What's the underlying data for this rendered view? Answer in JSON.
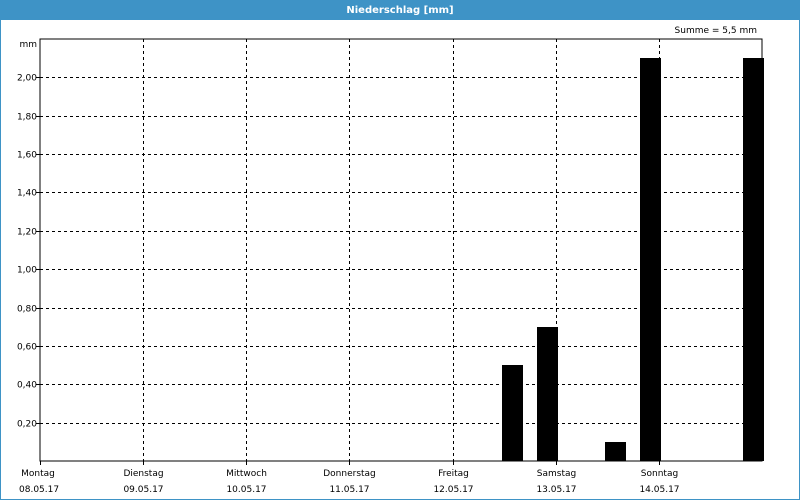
{
  "window": {
    "title": "Niederschlag [mm]"
  },
  "summary": "Summe = 5,5 mm",
  "chart_data": {
    "type": "bar",
    "title": "Niederschlag [mm]",
    "ylabel": "mm",
    "ylim": [
      0,
      2.2
    ],
    "yticks": [
      "0,20",
      "0,40",
      "0,60",
      "0,80",
      "1,00",
      "1,20",
      "1,40",
      "1,60",
      "1,80",
      "2,00"
    ],
    "ytick_values": [
      0.2,
      0.4,
      0.6,
      0.8,
      1.0,
      1.2,
      1.4,
      1.6,
      1.8,
      2.0
    ],
    "days": [
      {
        "weekday": "Montag",
        "date": "08.05.17"
      },
      {
        "weekday": "Dienstag",
        "date": "09.05.17"
      },
      {
        "weekday": "Mittwoch",
        "date": "10.05.17"
      },
      {
        "weekday": "Donnerstag",
        "date": "11.05.17"
      },
      {
        "weekday": "Freitag",
        "date": "12.05.17"
      },
      {
        "weekday": "Samstag",
        "date": "13.05.17"
      },
      {
        "weekday": "Sonntag",
        "date": "14.05.17"
      }
    ],
    "x_unit": "days since 08.05.17 00:00",
    "bars": [
      {
        "x": 4.58,
        "value": 0.5
      },
      {
        "x": 4.92,
        "value": 0.7
      },
      {
        "x": 5.58,
        "value": 0.1
      },
      {
        "x": 5.92,
        "value": 2.1
      },
      {
        "x": 6.92,
        "value": 2.1
      }
    ],
    "bar_color": "#000000",
    "grid": true
  }
}
